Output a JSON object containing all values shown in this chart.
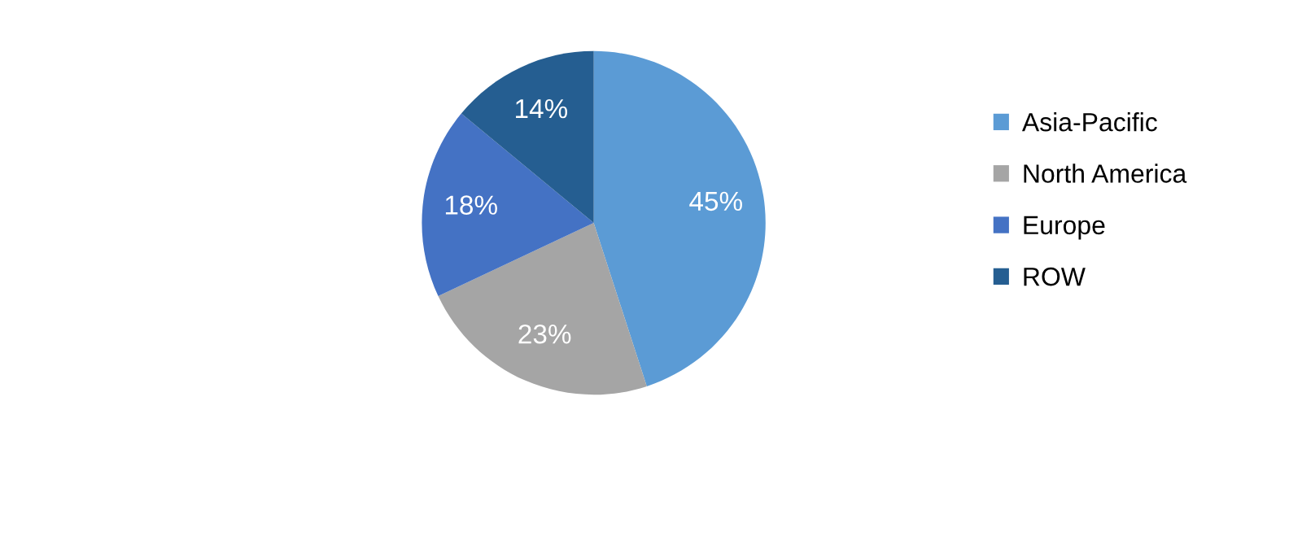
{
  "chart_data": {
    "type": "pie",
    "categories": [
      "Asia-Pacific",
      "North America",
      "Europe",
      "ROW"
    ],
    "values": [
      45,
      23,
      18,
      14
    ],
    "colors": [
      "#5b9bd5",
      "#a5a5a5",
      "#4472c4",
      "#255e91"
    ],
    "value_labels": [
      "45%",
      "23%",
      "18%",
      "14%"
    ],
    "legend": "right"
  }
}
